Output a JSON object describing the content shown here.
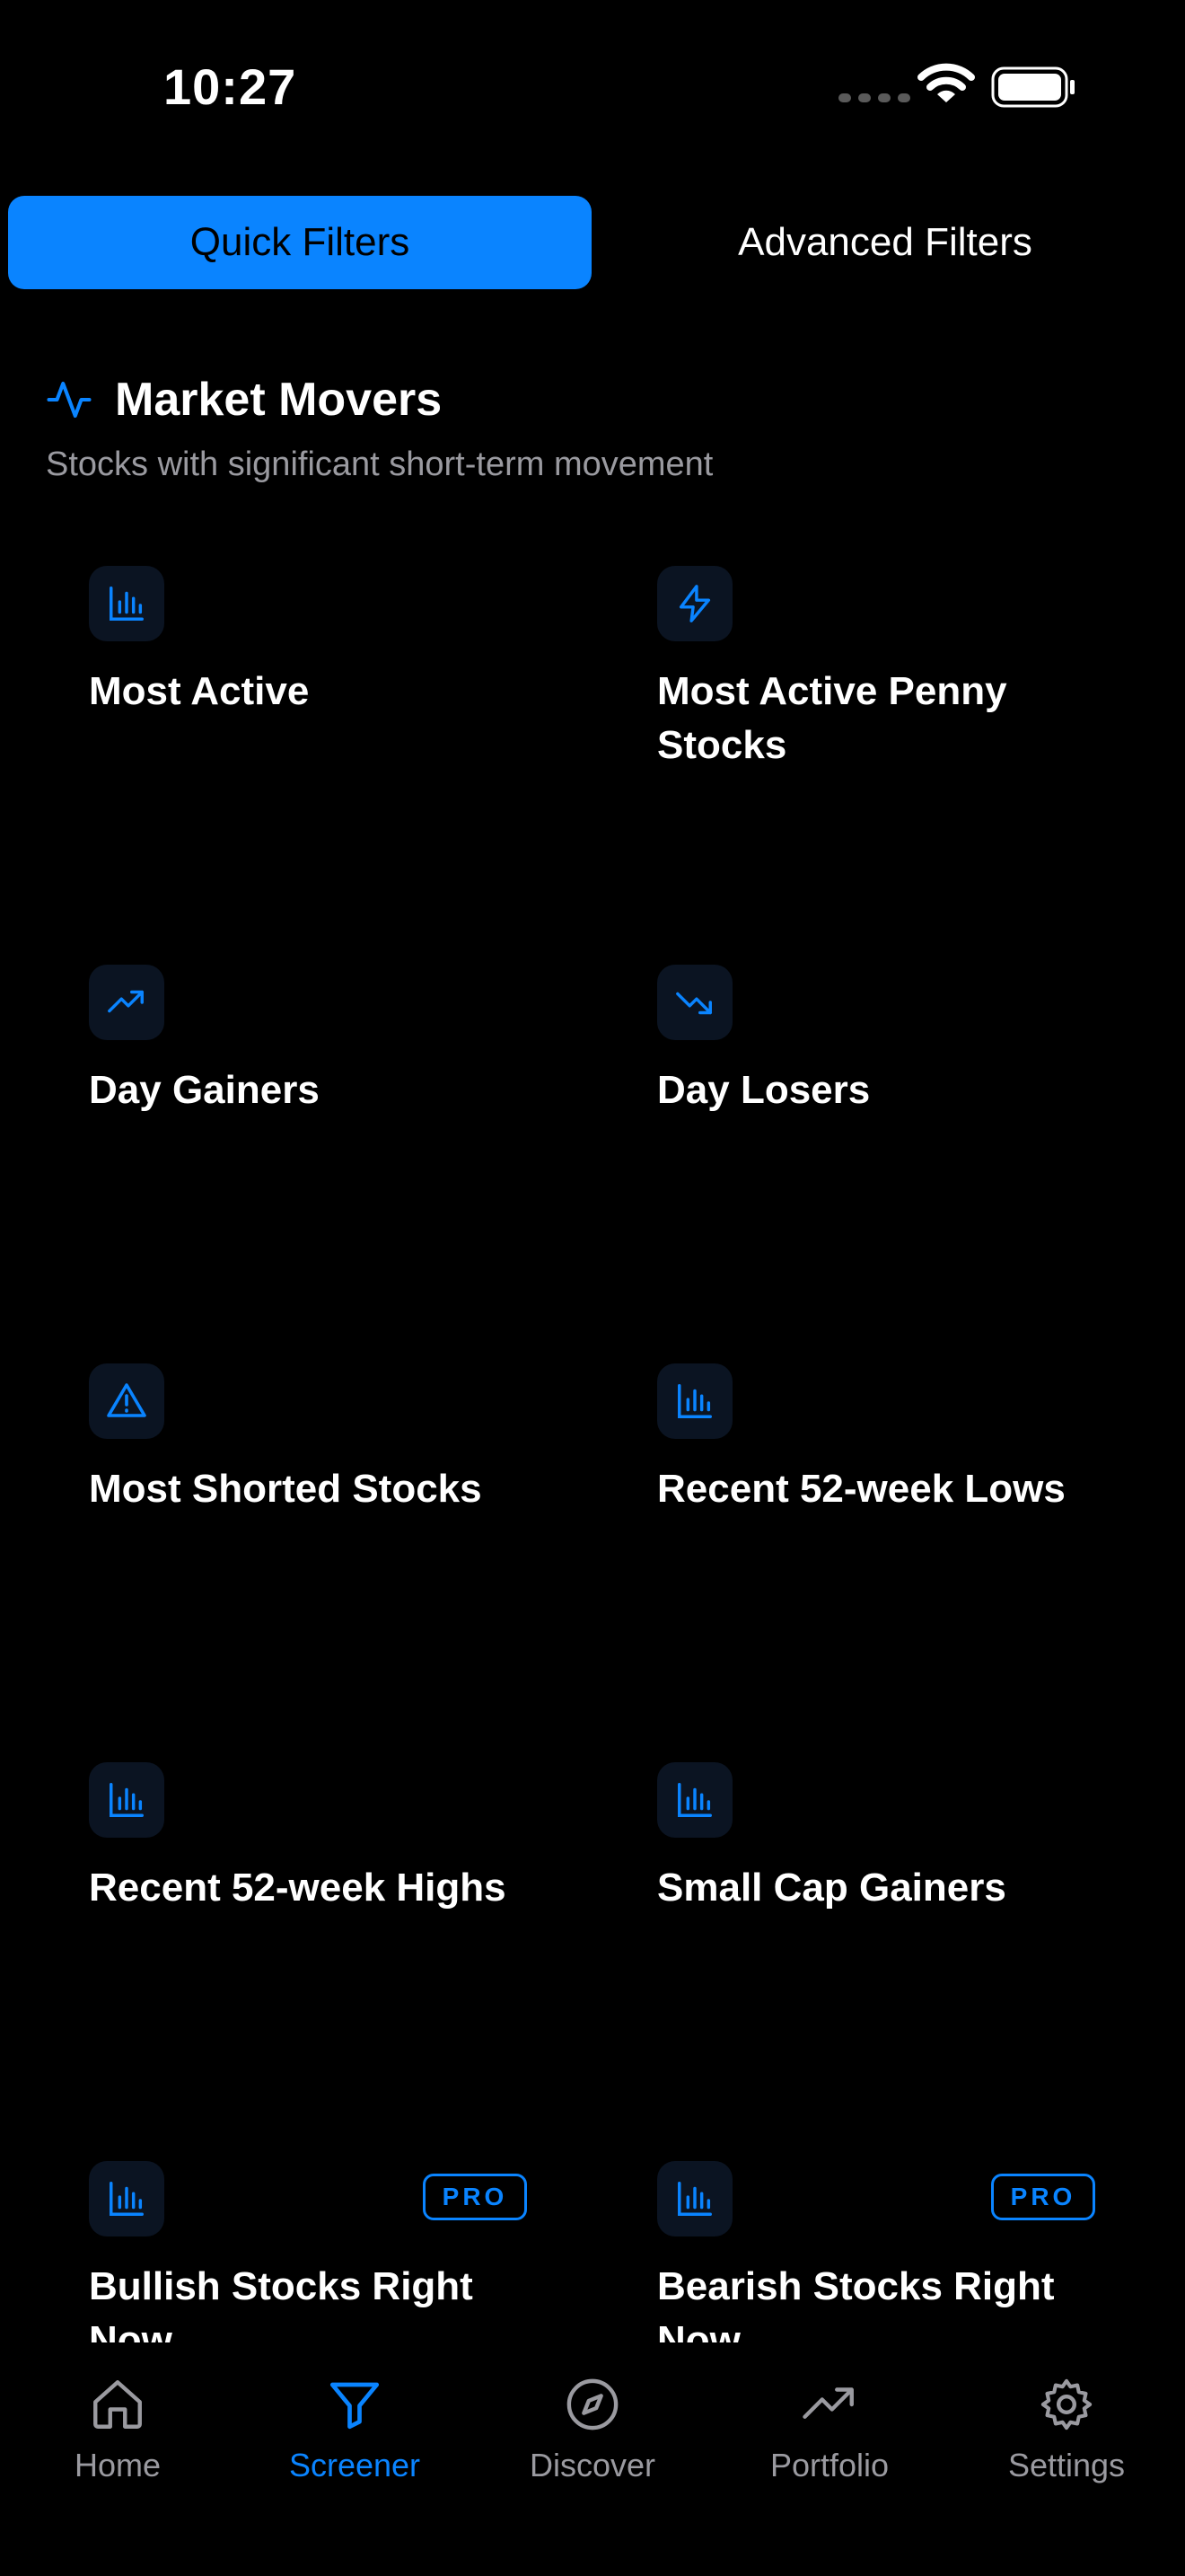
{
  "status_bar": {
    "time": "10:27"
  },
  "segments": {
    "quick_filters": "Quick Filters",
    "advanced_filters": "Advanced Filters"
  },
  "section": {
    "icon": "activity-icon",
    "title": "Market Movers",
    "subtitle": "Stocks with significant short-term movement"
  },
  "tiles": [
    {
      "title": "Most Active",
      "icon": "bar-chart-icon",
      "pro": false
    },
    {
      "title": "Most Active Penny Stocks",
      "icon": "lightning-icon",
      "pro": false
    },
    {
      "title": "Day Gainers",
      "icon": "trending-up-icon",
      "pro": false
    },
    {
      "title": "Day Losers",
      "icon": "trending-down-icon",
      "pro": false
    },
    {
      "title": "Most Shorted Stocks",
      "icon": "warning-icon",
      "pro": false
    },
    {
      "title": "Recent 52-week Lows",
      "icon": "bar-chart-icon",
      "pro": false
    },
    {
      "title": "Recent 52-week Highs",
      "icon": "bar-chart-icon",
      "pro": false
    },
    {
      "title": "Small Cap Gainers",
      "icon": "bar-chart-icon",
      "pro": false
    },
    {
      "title": "Bullish Stocks Right Now",
      "icon": "bar-chart-icon",
      "pro": true,
      "badge": "PRO"
    },
    {
      "title": "Bearish Stocks Right Now",
      "icon": "bar-chart-icon",
      "pro": true,
      "badge": "PRO"
    }
  ],
  "tab_bar": [
    {
      "label": "Home",
      "icon": "home-icon",
      "active": false
    },
    {
      "label": "Screener",
      "icon": "filter-icon",
      "active": true
    },
    {
      "label": "Discover",
      "icon": "compass-icon",
      "active": false
    },
    {
      "label": "Portfolio",
      "icon": "trending-up-icon",
      "active": false
    },
    {
      "label": "Settings",
      "icon": "gear-icon",
      "active": false
    }
  ],
  "colors": {
    "accent": "#0a84ff",
    "background": "#000000",
    "secondary_text": "#9a9aa0",
    "tile_icon_bg": "#0b1422"
  }
}
